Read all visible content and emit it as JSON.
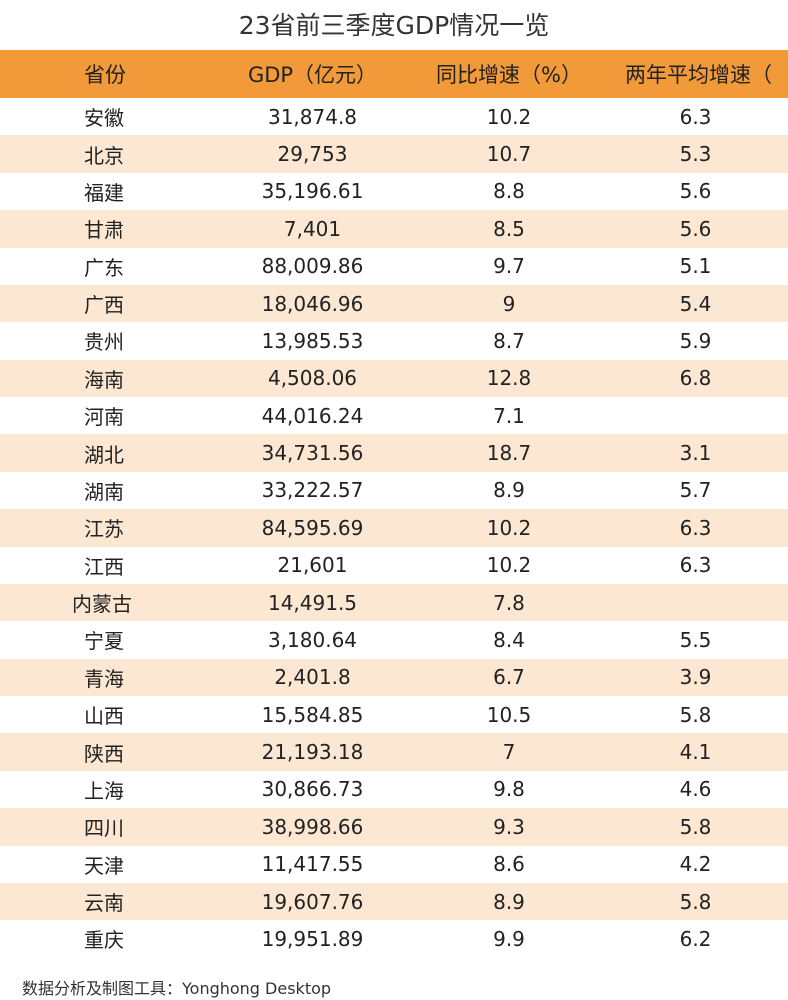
{
  "chart_data": {
    "type": "table",
    "title": "23省前三季度GDP情况一览",
    "columns": [
      "省份",
      "GDP（亿元）",
      "同比增速（%）",
      "两年平均增速（"
    ],
    "rows": [
      [
        "安徽",
        "31,874.8",
        "10.2",
        "6.3"
      ],
      [
        "北京",
        "29,753",
        "10.7",
        "5.3"
      ],
      [
        "福建",
        "35,196.61",
        "8.8",
        "5.6"
      ],
      [
        "甘肃",
        "7,401",
        "8.5",
        "5.6"
      ],
      [
        "广东",
        "88,009.86",
        "9.7",
        "5.1"
      ],
      [
        "广西",
        "18,046.96",
        "9",
        "5.4"
      ],
      [
        "贵州",
        "13,985.53",
        "8.7",
        "5.9"
      ],
      [
        "海南",
        "4,508.06",
        "12.8",
        "6.8"
      ],
      [
        "河南",
        "44,016.24",
        "7.1",
        ""
      ],
      [
        "湖北",
        "34,731.56",
        "18.7",
        "3.1"
      ],
      [
        "湖南",
        "33,222.57",
        "8.9",
        "5.7"
      ],
      [
        "江苏",
        "84,595.69",
        "10.2",
        "6.3"
      ],
      [
        "江西",
        "21,601",
        "10.2",
        "6.3"
      ],
      [
        "内蒙古",
        "14,491.5",
        "7.8",
        ""
      ],
      [
        "宁夏",
        "3,180.64",
        "8.4",
        "5.5"
      ],
      [
        "青海",
        "2,401.8",
        "6.7",
        "3.9"
      ],
      [
        "山西",
        "15,584.85",
        "10.5",
        "5.8"
      ],
      [
        "陕西",
        "21,193.18",
        "7",
        "4.1"
      ],
      [
        "上海",
        "30,866.73",
        "9.8",
        "4.6"
      ],
      [
        "四川",
        "38,998.66",
        "9.3",
        "5.8"
      ],
      [
        "天津",
        "11,417.55",
        "8.6",
        "4.2"
      ],
      [
        "云南",
        "19,607.76",
        "8.9",
        "5.8"
      ],
      [
        "重庆",
        "19,951.89",
        "9.9",
        "6.2"
      ]
    ]
  },
  "colors": {
    "header_bg": "#f2993a",
    "stripe_bg": "#fbe7d2"
  },
  "footer": "数据分析及制图工具：Yonghong Desktop"
}
